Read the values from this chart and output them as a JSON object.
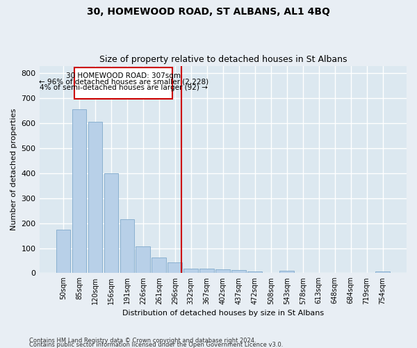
{
  "title": "30, HOMEWOOD ROAD, ST ALBANS, AL1 4BQ",
  "subtitle": "Size of property relative to detached houses in St Albans",
  "xlabel": "Distribution of detached houses by size in St Albans",
  "ylabel": "Number of detached properties",
  "bar_color": "#b8d0e8",
  "bar_edge_color": "#8ab0d0",
  "background_color": "#dce8f0",
  "grid_color": "#ffffff",
  "fig_background": "#e8eef4",
  "categories": [
    "50sqm",
    "85sqm",
    "120sqm",
    "156sqm",
    "191sqm",
    "226sqm",
    "261sqm",
    "296sqm",
    "332sqm",
    "367sqm",
    "402sqm",
    "437sqm",
    "472sqm",
    "508sqm",
    "543sqm",
    "578sqm",
    "613sqm",
    "648sqm",
    "684sqm",
    "719sqm",
    "754sqm"
  ],
  "values": [
    175,
    657,
    607,
    400,
    215,
    107,
    63,
    43,
    17,
    18,
    15,
    13,
    8,
    0,
    9,
    0,
    0,
    0,
    0,
    0,
    8
  ],
  "ylim": [
    0,
    830
  ],
  "yticks": [
    0,
    100,
    200,
    300,
    400,
    500,
    600,
    700,
    800
  ],
  "property_line_x": 7.42,
  "property_line_label": "30 HOMEWOOD ROAD: 307sqm",
  "pct_smaller": "96% of detached houses are smaller (2,228)",
  "pct_larger": "4% of semi-detached houses are larger (92)",
  "annotation_box_color": "#cc0000",
  "footer_line1": "Contains HM Land Registry data © Crown copyright and database right 2024.",
  "footer_line2": "Contains public sector information licensed under the Open Government Licence v3.0."
}
